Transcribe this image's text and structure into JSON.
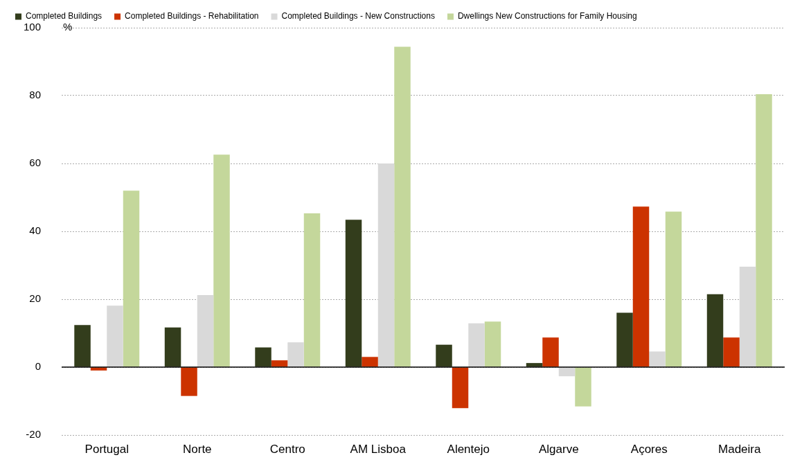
{
  "chart_data": {
    "type": "bar",
    "ylabel": "%",
    "categories": [
      "Portugal",
      "Norte",
      "Centro",
      "AM Lisboa",
      "Alentejo",
      "Algarve",
      "Açores",
      "Madeira"
    ],
    "series": [
      {
        "name": "Completed Buildings",
        "color": "#333d1c",
        "values": [
          12.4,
          11.7,
          5.8,
          43.4,
          6.6,
          1.2,
          16.0,
          21.5
        ]
      },
      {
        "name": "Completed Buildings - Rehabilitation",
        "color": "#cc3300",
        "values": [
          -1.0,
          -8.5,
          2.0,
          3.0,
          -12.1,
          8.7,
          47.3,
          8.7
        ]
      },
      {
        "name": "Completed Buildings - New Constructions",
        "color": "#d9d9d9",
        "values": [
          18.1,
          21.2,
          7.3,
          60.0,
          12.9,
          -2.7,
          4.6,
          29.6
        ]
      },
      {
        "name": "Dwellings New Constructions for Family Housing",
        "color": "#c4d79b",
        "values": [
          52.0,
          62.6,
          45.3,
          94.4,
          13.4,
          -11.6,
          45.8,
          80.4
        ]
      }
    ],
    "ylim": [
      -20,
      100
    ],
    "yticks": [
      -20,
      0,
      20,
      40,
      60,
      80,
      100
    ],
    "grid": "y",
    "legend": "top left"
  }
}
